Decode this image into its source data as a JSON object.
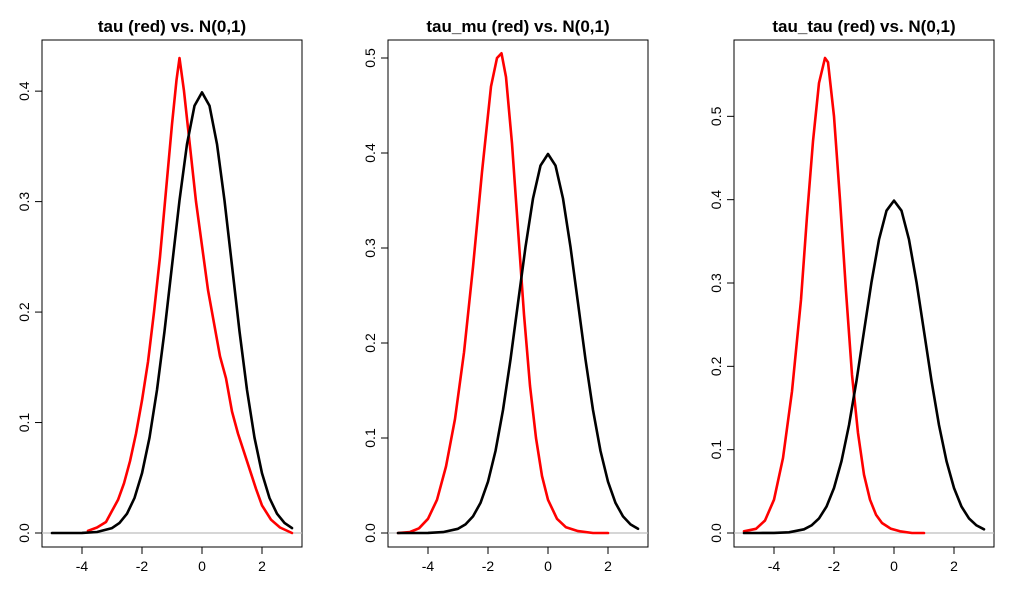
{
  "chart_data": [
    {
      "type": "line",
      "title": "tau (red) vs. N(0,1)",
      "xlabel": "",
      "ylabel": "",
      "xlim": [
        -5,
        3
      ],
      "ylim": [
        0,
        0.43
      ],
      "xticks": [
        -4,
        -2,
        0,
        2
      ],
      "xtick_labels": [
        "-4",
        "-2",
        "0",
        "2"
      ],
      "yticks": [
        0,
        0.1,
        0.2,
        0.3,
        0.4
      ],
      "ytick_labels": [
        "0.0",
        "0.1",
        "0.2",
        "0.3",
        "0.4"
      ],
      "grid": false,
      "legend": "none",
      "reference_line": 0,
      "series": [
        {
          "color": "#ff0000",
          "x": [
            -3.8,
            -3.5,
            -3.2,
            -3.0,
            -2.8,
            -2.6,
            -2.4,
            -2.2,
            -2.0,
            -1.8,
            -1.6,
            -1.4,
            -1.2,
            -1.0,
            -0.85,
            -0.75,
            -0.6,
            -0.4,
            -0.2,
            0.0,
            0.2,
            0.4,
            0.6,
            0.8,
            1.0,
            1.2,
            1.5,
            1.8,
            2.0,
            2.3,
            2.6,
            3.0
          ],
          "y": [
            0.002,
            0.005,
            0.01,
            0.02,
            0.03,
            0.045,
            0.065,
            0.09,
            0.12,
            0.155,
            0.2,
            0.25,
            0.31,
            0.37,
            0.41,
            0.43,
            0.4,
            0.35,
            0.3,
            0.26,
            0.22,
            0.19,
            0.16,
            0.14,
            0.11,
            0.09,
            0.065,
            0.04,
            0.025,
            0.012,
            0.005,
            0.0
          ]
        },
        {
          "color": "#000000",
          "x": [
            -5.0,
            -4.5,
            -4.0,
            -3.5,
            -3.0,
            -2.75,
            -2.5,
            -2.25,
            -2.0,
            -1.75,
            -1.5,
            -1.25,
            -1.0,
            -0.75,
            -0.5,
            -0.25,
            0.0,
            0.25,
            0.5,
            0.75,
            1.0,
            1.25,
            1.5,
            1.75,
            2.0,
            2.25,
            2.5,
            2.75,
            3.0
          ],
          "y": [
            0.0,
            0.0,
            0.0001,
            0.0009,
            0.0044,
            0.0091,
            0.0175,
            0.0317,
            0.054,
            0.0863,
            0.1295,
            0.1826,
            0.242,
            0.3011,
            0.3521,
            0.3867,
            0.3989,
            0.3867,
            0.3521,
            0.3011,
            0.242,
            0.1826,
            0.1295,
            0.0863,
            0.054,
            0.0317,
            0.0175,
            0.0091,
            0.0044
          ]
        }
      ]
    },
    {
      "type": "line",
      "title": "tau_mu (red) vs. N(0,1)",
      "xlabel": "",
      "ylabel": "",
      "xlim": [
        -5,
        3
      ],
      "ylim": [
        0,
        0.5
      ],
      "xticks": [
        -4,
        -2,
        0,
        2
      ],
      "xtick_labels": [
        "-4",
        "-2",
        "0",
        "2"
      ],
      "yticks": [
        0,
        0.1,
        0.2,
        0.3,
        0.4,
        0.5
      ],
      "ytick_labels": [
        "0.0",
        "0.1",
        "0.2",
        "0.3",
        "0.4",
        "0.5"
      ],
      "grid": false,
      "legend": "none",
      "reference_line": 0,
      "series": [
        {
          "color": "#ff0000",
          "x": [
            -5.0,
            -4.6,
            -4.3,
            -4.0,
            -3.7,
            -3.4,
            -3.1,
            -2.8,
            -2.5,
            -2.2,
            -1.9,
            -1.7,
            -1.55,
            -1.4,
            -1.2,
            -1.0,
            -0.8,
            -0.6,
            -0.4,
            -0.2,
            0.0,
            0.3,
            0.6,
            1.0,
            1.5,
            2.0
          ],
          "y": [
            0.0,
            0.001,
            0.005,
            0.015,
            0.035,
            0.07,
            0.12,
            0.19,
            0.28,
            0.38,
            0.47,
            0.5,
            0.505,
            0.48,
            0.41,
            0.32,
            0.23,
            0.155,
            0.1,
            0.06,
            0.035,
            0.015,
            0.006,
            0.002,
            0.0,
            0.0
          ]
        },
        {
          "color": "#000000",
          "x": [
            -5.0,
            -4.5,
            -4.0,
            -3.5,
            -3.0,
            -2.75,
            -2.5,
            -2.25,
            -2.0,
            -1.75,
            -1.5,
            -1.25,
            -1.0,
            -0.75,
            -0.5,
            -0.25,
            0.0,
            0.25,
            0.5,
            0.75,
            1.0,
            1.25,
            1.5,
            1.75,
            2.0,
            2.25,
            2.5,
            2.75,
            3.0
          ],
          "y": [
            0.0,
            0.0,
            0.0001,
            0.0009,
            0.0044,
            0.0091,
            0.0175,
            0.0317,
            0.054,
            0.0863,
            0.1295,
            0.1826,
            0.242,
            0.3011,
            0.3521,
            0.3867,
            0.3989,
            0.3867,
            0.3521,
            0.3011,
            0.242,
            0.1826,
            0.1295,
            0.0863,
            0.054,
            0.0317,
            0.0175,
            0.0091,
            0.0044
          ]
        }
      ]
    },
    {
      "type": "line",
      "title": "tau_tau (red) vs. N(0,1)",
      "xlabel": "",
      "ylabel": "",
      "xlim": [
        -5,
        3
      ],
      "ylim": [
        0,
        0.57
      ],
      "xticks": [
        -4,
        -2,
        0,
        2
      ],
      "xtick_labels": [
        "-4",
        "-2",
        "0",
        "2"
      ],
      "yticks": [
        0,
        0.1,
        0.2,
        0.3,
        0.4,
        0.5
      ],
      "ytick_labels": [
        "0.0",
        "0.1",
        "0.2",
        "0.3",
        "0.4",
        "0.5"
      ],
      "grid": false,
      "legend": "none",
      "reference_line": 0,
      "series": [
        {
          "color": "#ff0000",
          "x": [
            -5.0,
            -4.6,
            -4.3,
            -4.0,
            -3.7,
            -3.4,
            -3.1,
            -2.9,
            -2.7,
            -2.5,
            -2.3,
            -2.2,
            -2.0,
            -1.8,
            -1.6,
            -1.4,
            -1.2,
            -1.0,
            -0.8,
            -0.6,
            -0.4,
            -0.1,
            0.2,
            0.6,
            1.0
          ],
          "y": [
            0.002,
            0.005,
            0.015,
            0.04,
            0.09,
            0.17,
            0.28,
            0.38,
            0.47,
            0.54,
            0.57,
            0.565,
            0.5,
            0.4,
            0.29,
            0.19,
            0.12,
            0.07,
            0.04,
            0.022,
            0.012,
            0.005,
            0.002,
            0.0,
            0.0
          ]
        },
        {
          "color": "#000000",
          "x": [
            -5.0,
            -4.5,
            -4.0,
            -3.5,
            -3.0,
            -2.75,
            -2.5,
            -2.25,
            -2.0,
            -1.75,
            -1.5,
            -1.25,
            -1.0,
            -0.75,
            -0.5,
            -0.25,
            0.0,
            0.25,
            0.5,
            0.75,
            1.0,
            1.25,
            1.5,
            1.75,
            2.0,
            2.25,
            2.5,
            2.75,
            3.0
          ],
          "y": [
            0.0,
            0.0,
            0.0001,
            0.0009,
            0.0044,
            0.0091,
            0.0175,
            0.0317,
            0.054,
            0.0863,
            0.1295,
            0.1826,
            0.242,
            0.3011,
            0.3521,
            0.3867,
            0.3989,
            0.3867,
            0.3521,
            0.3011,
            0.242,
            0.1826,
            0.1295,
            0.0863,
            0.054,
            0.0317,
            0.0175,
            0.0091,
            0.0044
          ]
        }
      ]
    }
  ]
}
